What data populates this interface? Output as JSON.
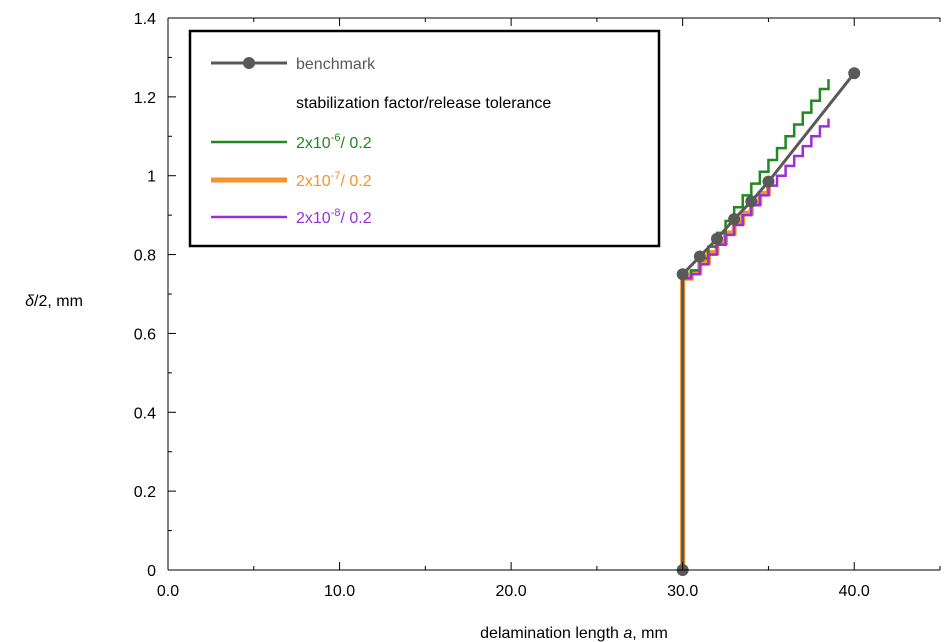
{
  "chart_data": {
    "type": "line",
    "xlabel_prefix": "delamination length ",
    "xlabel_var": "a",
    "xlabel_suffix": ", mm",
    "ylabel_var": "δ",
    "ylabel_suffix": "/2, mm",
    "xlim": [
      0,
      45
    ],
    "ylim": [
      0,
      1.4
    ],
    "x_ticks": [
      0,
      10,
      20,
      30,
      40
    ],
    "x_tick_labels": [
      "0.0",
      "10.0",
      "20.0",
      "30.0",
      "40.0"
    ],
    "y_ticks": [
      0,
      0.2,
      0.4,
      0.6,
      0.8,
      1.0,
      1.2,
      1.4
    ],
    "y_tick_labels": [
      "0",
      "0.2",
      "0.4",
      "0.6",
      "0.8",
      "1",
      "1.2",
      "1.4"
    ],
    "legend_position": "top-left",
    "legend_heading": "stabilization factor/release tolerance",
    "series": [
      {
        "name": "benchmark",
        "color": "#595959",
        "marker": "circle",
        "x": [
          30,
          30,
          31,
          32,
          33,
          34,
          35,
          40
        ],
        "y": [
          0,
          0.75,
          0.795,
          0.84,
          0.89,
          0.935,
          0.985,
          1.26
        ]
      },
      {
        "name": "2x10-6/ 0.2",
        "label_base": "2x10",
        "label_exp": "-6",
        "label_tail": "/ 0.2",
        "color": "#1f8a1f",
        "steps": true,
        "x": [
          30,
          30,
          30.5,
          31,
          31.5,
          32,
          32.5,
          33,
          33.5,
          34,
          34.5,
          35,
          35.5,
          36,
          36.5,
          37,
          37.5,
          38,
          38.5
        ],
        "y": [
          0,
          0.74,
          0.76,
          0.79,
          0.82,
          0.855,
          0.885,
          0.92,
          0.95,
          0.98,
          1.01,
          1.04,
          1.07,
          1.1,
          1.13,
          1.16,
          1.19,
          1.22,
          1.245
        ]
      },
      {
        "name": "2x10-7/ 0.2",
        "label_base": "2x10",
        "label_exp": "-7",
        "label_tail": "/ 0.2",
        "color": "#f5922f",
        "thick": true,
        "steps": true,
        "x": [
          30,
          30,
          30.5,
          31,
          31.5,
          32,
          32.5,
          33,
          33.5,
          34,
          34.5,
          35
        ],
        "y": [
          0,
          0.74,
          0.755,
          0.78,
          0.805,
          0.83,
          0.855,
          0.88,
          0.905,
          0.93,
          0.955,
          0.98
        ]
      },
      {
        "name": "2x10-8/ 0.2",
        "label_base": "2x10",
        "label_exp": "-8",
        "label_tail": "/ 0.2",
        "color": "#9b30d9",
        "steps": true,
        "x": [
          30,
          30,
          30.5,
          31,
          31.5,
          32,
          32.5,
          33,
          33.5,
          34,
          34.5,
          35,
          35.5,
          36,
          36.5,
          37,
          37.5,
          38,
          38.5
        ],
        "y": [
          0,
          0.74,
          0.75,
          0.775,
          0.8,
          0.825,
          0.85,
          0.875,
          0.9,
          0.925,
          0.95,
          0.975,
          1.0,
          1.025,
          1.05,
          1.075,
          1.1,
          1.125,
          1.145
        ]
      }
    ]
  }
}
